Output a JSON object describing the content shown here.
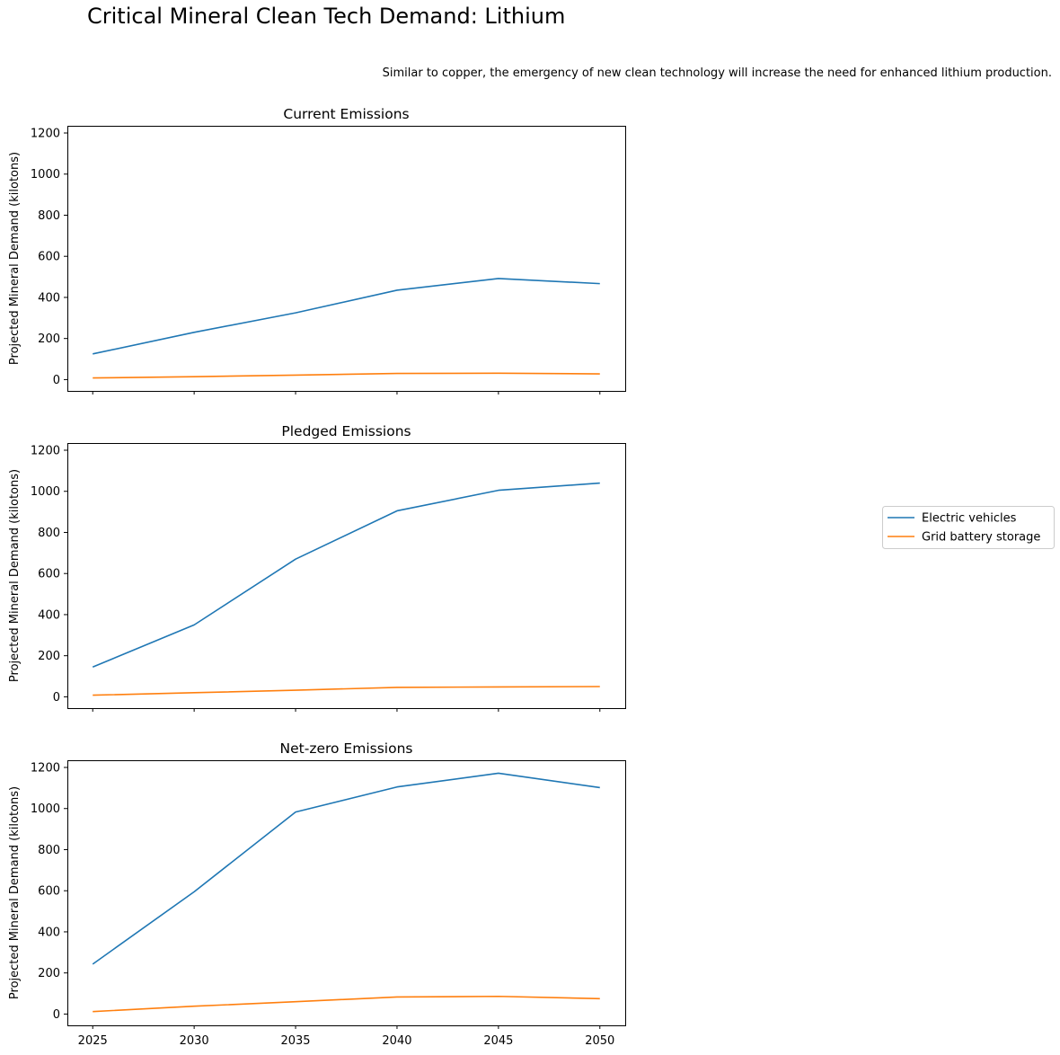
{
  "figure": {
    "title": "Critical Mineral Clean Tech Demand: Lithium",
    "subtitle": "Similar to copper, the emergency of new clean technology will increase the need for enhanced lithium production."
  },
  "legend": {
    "placement": "right-center",
    "entries": [
      {
        "label": "Electric vehicles",
        "color": "#1f77b4"
      },
      {
        "label": "Grid battery storage",
        "color": "#ff7f0e"
      }
    ]
  },
  "chart_data": [
    {
      "type": "line",
      "title": "Current Emissions",
      "xlabel": "",
      "ylabel": "Projected Mineral Demand (kilotons)",
      "x": [
        2025,
        2030,
        2035,
        2040,
        2045,
        2050
      ],
      "xticks": [
        "2025",
        "2030",
        "2035",
        "2040",
        "2045",
        "2050"
      ],
      "show_xtick_labels": false,
      "yticks": [
        "0",
        "200",
        "400",
        "600",
        "800",
        "1000",
        "1200"
      ],
      "ylim": [
        -55,
        1235
      ],
      "grid": false,
      "series": [
        {
          "name": "Electric vehicles",
          "color": "#1f77b4",
          "values": [
            125,
            230,
            325,
            435,
            492,
            467
          ]
        },
        {
          "name": "Grid battery storage",
          "color": "#ff7f0e",
          "values": [
            8,
            14,
            22,
            30,
            31,
            28
          ]
        }
      ]
    },
    {
      "type": "line",
      "title": "Pledged Emissions",
      "xlabel": "",
      "ylabel": "Projected Mineral Demand (kilotons)",
      "x": [
        2025,
        2030,
        2035,
        2040,
        2045,
        2050
      ],
      "xticks": [
        "2025",
        "2030",
        "2035",
        "2040",
        "2045",
        "2050"
      ],
      "show_xtick_labels": false,
      "yticks": [
        "0",
        "200",
        "400",
        "600",
        "800",
        "1000",
        "1200"
      ],
      "ylim": [
        -55,
        1235
      ],
      "grid": false,
      "series": [
        {
          "name": "Electric vehicles",
          "color": "#1f77b4",
          "values": [
            145,
            350,
            670,
            905,
            1005,
            1040
          ]
        },
        {
          "name": "Grid battery storage",
          "color": "#ff7f0e",
          "values": [
            8,
            20,
            32,
            46,
            48,
            50
          ]
        }
      ]
    },
    {
      "type": "line",
      "title": "Net-zero Emissions",
      "xlabel": "",
      "ylabel": "Projected Mineral Demand (kilotons)",
      "x": [
        2025,
        2030,
        2035,
        2040,
        2045,
        2050
      ],
      "xticks": [
        "2025",
        "2030",
        "2035",
        "2040",
        "2045",
        "2050"
      ],
      "show_xtick_labels": true,
      "yticks": [
        "0",
        "200",
        "400",
        "600",
        "800",
        "1000",
        "1200"
      ],
      "ylim": [
        -55,
        1235
      ],
      "grid": false,
      "series": [
        {
          "name": "Electric vehicles",
          "color": "#1f77b4",
          "values": [
            243,
            595,
            983,
            1105,
            1172,
            1102
          ]
        },
        {
          "name": "Grid battery storage",
          "color": "#ff7f0e",
          "values": [
            12,
            38,
            60,
            83,
            86,
            75
          ]
        }
      ]
    }
  ]
}
